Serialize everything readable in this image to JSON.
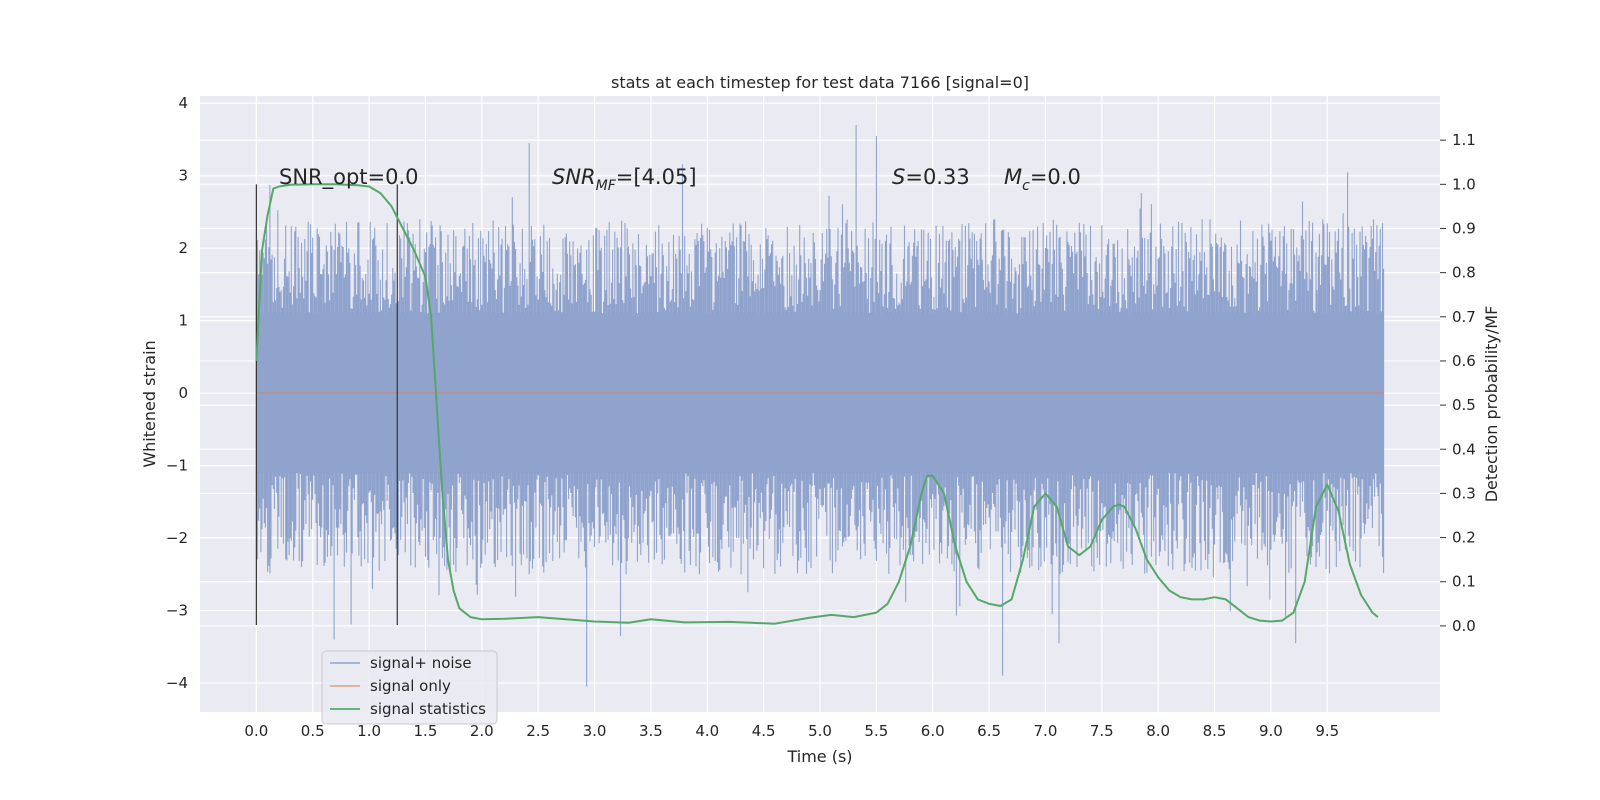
{
  "chart_data": {
    "type": "line",
    "title": "stats at each timestep for test data 7166 [signal=0]",
    "xlabel": "Time (s)",
    "ylabel": "Whitened strain",
    "y2label": "Detection probability/MF",
    "xlim": [
      -0.5,
      10.5
    ],
    "ylim": [
      -4.4,
      4.1
    ],
    "y2lim": [
      -0.195,
      1.2
    ],
    "x_ticks": [
      "0.0",
      "0.5",
      "1.0",
      "1.5",
      "2.0",
      "2.5",
      "3.0",
      "3.5",
      "4.0",
      "4.5",
      "5.0",
      "5.5",
      "6.0",
      "6.5",
      "7.0",
      "7.5",
      "8.0",
      "8.5",
      "9.0",
      "9.5"
    ],
    "y_ticks": [
      "−4",
      "−3",
      "−2",
      "−1",
      "0",
      "1",
      "2",
      "3",
      "4"
    ],
    "y2_ticks": [
      "0.0",
      "0.1",
      "0.2",
      "0.3",
      "0.4",
      "0.5",
      "0.6",
      "0.7",
      "0.8",
      "0.9",
      "1.0",
      "1.1"
    ],
    "grid": true,
    "legend_position": "lower-left",
    "colors": {
      "noise": "#8fa3cd",
      "signal_only": "#dd8452",
      "stats": "#55a868",
      "background": "#eaeaf2",
      "marker": "#333333"
    },
    "series": [
      {
        "name": "signal+ noise",
        "axis": "left",
        "x_range": [
          0,
          10
        ],
        "typical_amplitude_range": [
          -1.1,
          1.1
        ],
        "envelope_range": [
          -2.5,
          2.4
        ],
        "notable_extremes": [
          {
            "x": 2.42,
            "y": 3.45
          },
          {
            "x": 5.32,
            "y": 3.7
          },
          {
            "x": 5.5,
            "y": 3.55
          },
          {
            "x": 2.93,
            "y": -4.05
          },
          {
            "x": 6.62,
            "y": -3.9
          },
          {
            "x": 0.69,
            "y": -3.4
          },
          {
            "x": 3.23,
            "y": -3.35
          },
          {
            "x": 7.12,
            "y": -3.45
          },
          {
            "x": 9.22,
            "y": -3.45
          }
        ]
      },
      {
        "name": "signal only",
        "axis": "left",
        "x": [
          0,
          10
        ],
        "y": [
          0,
          0
        ]
      },
      {
        "name": "signal statistics",
        "axis": "right",
        "x": [
          0,
          0.05,
          0.1,
          0.15,
          0.2,
          0.3,
          0.5,
          0.7,
          0.9,
          1.0,
          1.1,
          1.2,
          1.3,
          1.4,
          1.5,
          1.55,
          1.6,
          1.65,
          1.7,
          1.75,
          1.8,
          1.9,
          2.0,
          2.2,
          2.5,
          3.0,
          3.3,
          3.5,
          3.8,
          4.2,
          4.6,
          4.9,
          5.1,
          5.3,
          5.5,
          5.6,
          5.7,
          5.8,
          5.9,
          5.95,
          6.0,
          6.1,
          6.2,
          6.3,
          6.4,
          6.5,
          6.6,
          6.7,
          6.8,
          6.9,
          7.0,
          7.1,
          7.2,
          7.3,
          7.4,
          7.5,
          7.6,
          7.65,
          7.7,
          7.8,
          7.9,
          8.0,
          8.1,
          8.2,
          8.3,
          8.4,
          8.5,
          8.6,
          8.7,
          8.8,
          8.9,
          9.0,
          9.1,
          9.2,
          9.3,
          9.4,
          9.5,
          9.6,
          9.7,
          9.8,
          9.9,
          9.95
        ],
        "y": [
          0.6,
          0.85,
          0.93,
          0.99,
          0.995,
          0.999,
          1.0,
          1.0,
          0.998,
          0.995,
          0.98,
          0.95,
          0.9,
          0.85,
          0.79,
          0.7,
          0.5,
          0.3,
          0.15,
          0.08,
          0.04,
          0.02,
          0.015,
          0.016,
          0.02,
          0.01,
          0.007,
          0.015,
          0.008,
          0.009,
          0.005,
          0.018,
          0.025,
          0.02,
          0.03,
          0.05,
          0.1,
          0.18,
          0.3,
          0.34,
          0.34,
          0.3,
          0.18,
          0.1,
          0.06,
          0.05,
          0.045,
          0.06,
          0.15,
          0.27,
          0.3,
          0.27,
          0.18,
          0.16,
          0.18,
          0.24,
          0.27,
          0.275,
          0.27,
          0.22,
          0.15,
          0.11,
          0.08,
          0.065,
          0.06,
          0.06,
          0.065,
          0.06,
          0.04,
          0.02,
          0.012,
          0.01,
          0.012,
          0.03,
          0.1,
          0.27,
          0.32,
          0.26,
          0.14,
          0.07,
          0.03,
          0.02
        ]
      }
    ],
    "vertical_markers": [
      0.0,
      1.25
    ],
    "annotations": [
      {
        "id": "snr_opt",
        "x": 0.2,
        "text": "SNR_opt=0.0"
      },
      {
        "id": "snr_mf",
        "x": 2.6,
        "base": "SNR",
        "sub": "MF",
        "value": "=[4.05]"
      },
      {
        "id": "s_stat",
        "x": 5.6,
        "base": "S",
        "value": "=0.33"
      },
      {
        "id": "mc",
        "x": 6.6,
        "base": "M",
        "sub": "c",
        "value": "=0.0"
      }
    ]
  }
}
